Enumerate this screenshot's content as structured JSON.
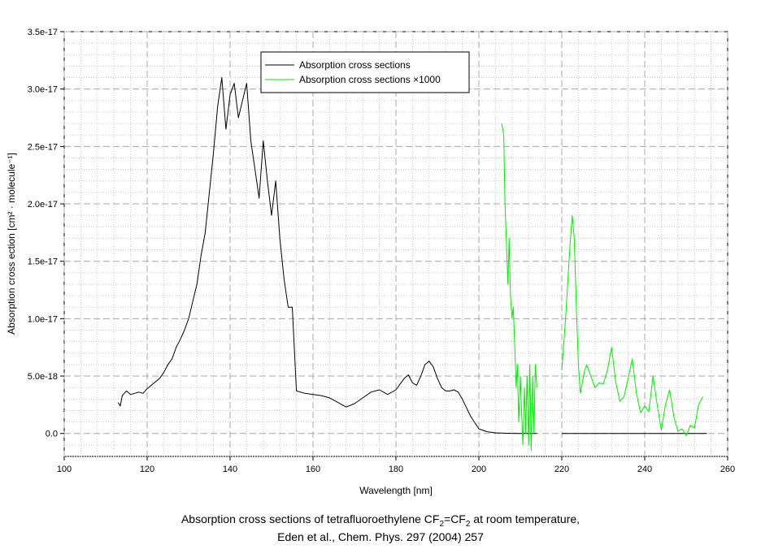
{
  "chart_data": {
    "type": "line",
    "xlabel": "Wavelength [nm]",
    "ylabel": "Absorption cross ection [cm² · molecule⁻¹]",
    "xlim": [
      100,
      260
    ],
    "ylim": [
      -2e-18,
      3.5e-17
    ],
    "x_ticks": [
      100,
      120,
      140,
      160,
      180,
      200,
      220,
      240,
      260
    ],
    "y_ticks": [
      0,
      5e-18,
      1e-17,
      1.5e-17,
      2e-17,
      2.5e-17,
      3e-17,
      3.5e-17
    ],
    "y_tick_labels": [
      "0.0",
      "5.0e-18",
      "1.0e-17",
      "1.5e-17",
      "2.0e-17",
      "2.5e-17",
      "3.0e-17",
      "3.5e-17"
    ],
    "grid": true,
    "legend_position": "top-center",
    "series": [
      {
        "name": "Absorption cross sections",
        "color": "#000000",
        "x": [
          113,
          113.5,
          114,
          115,
          116,
          117,
          118,
          119,
          120,
          121,
          122,
          123,
          124,
          125,
          126,
          127,
          128,
          129,
          130,
          131,
          132,
          133,
          134,
          135,
          136,
          137,
          138,
          139,
          140,
          141,
          142,
          143,
          144,
          145,
          146,
          147,
          148,
          149,
          150,
          151,
          152,
          153,
          154,
          155,
          156,
          158,
          160,
          162,
          164,
          166,
          168,
          170,
          172,
          174,
          176,
          178,
          180,
          182,
          183,
          184,
          185,
          186,
          187,
          188,
          189,
          190,
          191,
          192,
          193,
          194,
          195,
          196,
          198,
          200,
          202,
          204,
          206,
          208,
          210,
          212,
          214,
          null,
          220,
          225,
          230,
          235,
          240,
          245,
          250,
          255
        ],
        "y": [
          2.7e-18,
          2.4e-18,
          3.3e-18,
          3.7e-18,
          3.4e-18,
          3.5e-18,
          3.6e-18,
          3.5e-18,
          3.9e-18,
          4.2e-18,
          4.5e-18,
          4.8e-18,
          5.3e-18,
          6e-18,
          6.5e-18,
          7.5e-18,
          8.2e-18,
          9e-18,
          1e-17,
          1.15e-17,
          1.3e-17,
          1.55e-17,
          1.75e-17,
          2.1e-17,
          2.45e-17,
          2.85e-17,
          3.1e-17,
          2.65e-17,
          2.95e-17,
          3.05e-17,
          2.75e-17,
          2.9e-17,
          3.05e-17,
          2.55e-17,
          2.3e-17,
          2.05e-17,
          2.55e-17,
          2.2e-17,
          1.9e-17,
          2.2e-17,
          1.7e-17,
          1.35e-17,
          1.1e-17,
          1.1e-17,
          3.7e-18,
          3.5e-18,
          3.4e-18,
          3.3e-18,
          3.1e-18,
          2.7e-18,
          2.3e-18,
          2.6e-18,
          3.1e-18,
          3.6e-18,
          3.8e-18,
          3.4e-18,
          3.8e-18,
          4.8e-18,
          5.1e-18,
          4.4e-18,
          4.2e-18,
          5e-18,
          6e-18,
          6.3e-18,
          5.8e-18,
          4.8e-18,
          4e-18,
          3.7e-18,
          3.7e-18,
          3.8e-18,
          3.6e-18,
          3e-18,
          1.5e-18,
          4e-19,
          1.5e-19,
          5e-20,
          2e-20,
          1e-20,
          0,
          0,
          0,
          null,
          0,
          0,
          0,
          0,
          0,
          0,
          0,
          0
        ]
      },
      {
        "name": "Absorption cross sections ×1000",
        "color": "#00ee00",
        "x": [
          205.5,
          206,
          206.3,
          206.6,
          207,
          207.3,
          207.6,
          208,
          208.3,
          208.6,
          209,
          209.3,
          209.6,
          210,
          210.3,
          210.6,
          211,
          211.3,
          211.6,
          212,
          212.3,
          212.6,
          213,
          213.3,
          213.6,
          214,
          null,
          220,
          220.5,
          221,
          221.5,
          222,
          222.5,
          223,
          223.5,
          224,
          224.5,
          225,
          225.5,
          226,
          227,
          228,
          229,
          230,
          231,
          232,
          233,
          234,
          235,
          236,
          237,
          238,
          239,
          240,
          241,
          242,
          243,
          244,
          245,
          246,
          247,
          248,
          249,
          250,
          251,
          252,
          253,
          254
        ],
        "y": [
          2.7e-17,
          2.6e-17,
          2e-17,
          1.7e-17,
          1.3e-17,
          1.7e-17,
          1.2e-17,
          1e-17,
          1.1e-17,
          8e-18,
          4e-18,
          6e-18,
          1e-18,
          5e-18,
          2e-18,
          -1e-18,
          4e-18,
          0,
          5e-18,
          -1e-18,
          6e-18,
          -1.5e-18,
          5e-18,
          0,
          6e-18,
          4e-18,
          null,
          5.5e-18,
          8e-18,
          1.05e-17,
          1.35e-17,
          1.65e-17,
          1.9e-17,
          1.7e-17,
          1.1e-17,
          6e-18,
          3.5e-18,
          4.5e-18,
          5.5e-18,
          6e-18,
          5e-18,
          4e-18,
          4.4e-18,
          4.3e-18,
          5.5e-18,
          7.5e-18,
          4.5e-18,
          2.8e-18,
          3.2e-18,
          4.8e-18,
          6.5e-18,
          3.5e-18,
          1.8e-18,
          2.4e-18,
          1.9e-18,
          5e-18,
          2.5e-18,
          3e-19,
          2.5e-18,
          3.8e-18,
          1.5e-18,
          2e-19,
          4e-19,
          -2e-19,
          7e-19,
          5e-19,
          2.5e-18,
          3.2e-18
        ]
      }
    ]
  },
  "caption": {
    "line1_pre": "Absorption cross sections of tetrafluoroethylene CF",
    "sub1": "2",
    "mid": "=CF",
    "sub2": "2",
    "line1_post": " at room temperature,",
    "line2": "Eden et al., Chem. Phys. 297 (2004) 257"
  }
}
